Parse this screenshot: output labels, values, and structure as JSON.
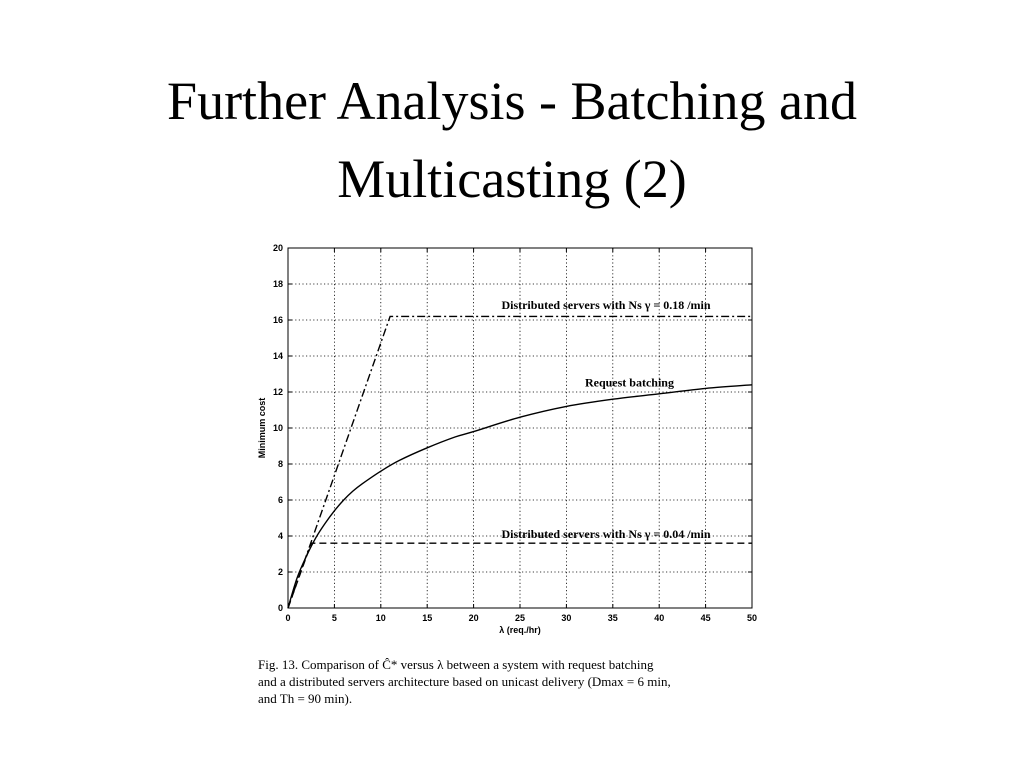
{
  "slide": {
    "title_line1": "Further Analysis - Batching and",
    "title_line2": "Multicasting (2)"
  },
  "figure_caption": {
    "line1": "Fig. 13.    Comparison of Ĉ* versus λ between a system with request batching",
    "line2": "and a distributed servers architecture based on unicast delivery (Dmax = 6 min,",
    "line3": "and Th = 90 min)."
  },
  "chart_data": {
    "type": "line",
    "xlabel": "λ (req./hr)",
    "ylabel": "Minimum cost",
    "xlim": [
      0,
      50
    ],
    "ylim": [
      0,
      20
    ],
    "xticks": [
      0,
      5,
      10,
      15,
      20,
      25,
      30,
      35,
      40,
      45,
      50
    ],
    "yticks": [
      0,
      2,
      4,
      6,
      8,
      10,
      12,
      14,
      16,
      18,
      20
    ],
    "grid": true,
    "series": [
      {
        "name": "Request batching",
        "style": "solid",
        "x": [
          0,
          1,
          2,
          3,
          4,
          5,
          6,
          7,
          8,
          10,
          12,
          15,
          18,
          20,
          25,
          30,
          35,
          40,
          45,
          50
        ],
        "y": [
          0,
          1.7,
          2.9,
          3.9,
          4.7,
          5.4,
          6.0,
          6.5,
          6.9,
          7.6,
          8.2,
          8.9,
          9.5,
          9.8,
          10.6,
          11.2,
          11.6,
          11.9,
          12.2,
          12.4
        ]
      },
      {
        "name": "Distributed servers with Ns γ = 0.18 /min",
        "style": "dashdot",
        "x": [
          0,
          11,
          50
        ],
        "y": [
          0,
          16.2,
          16.2
        ]
      },
      {
        "name": "Distributed servers with Ns γ = 0.04 /min",
        "style": "dashed",
        "x": [
          0,
          2.5,
          50
        ],
        "y": [
          0,
          3.6,
          3.6
        ]
      }
    ],
    "annotations": [
      {
        "text": "Distributed servers with Ns γ = 0.18 /min",
        "x": 23,
        "y": 16.6
      },
      {
        "text": "Request batching",
        "x": 32,
        "y": 12.3
      },
      {
        "text": "Distributed servers with Ns γ = 0.04 /min",
        "x": 23,
        "y": 3.9
      }
    ]
  }
}
